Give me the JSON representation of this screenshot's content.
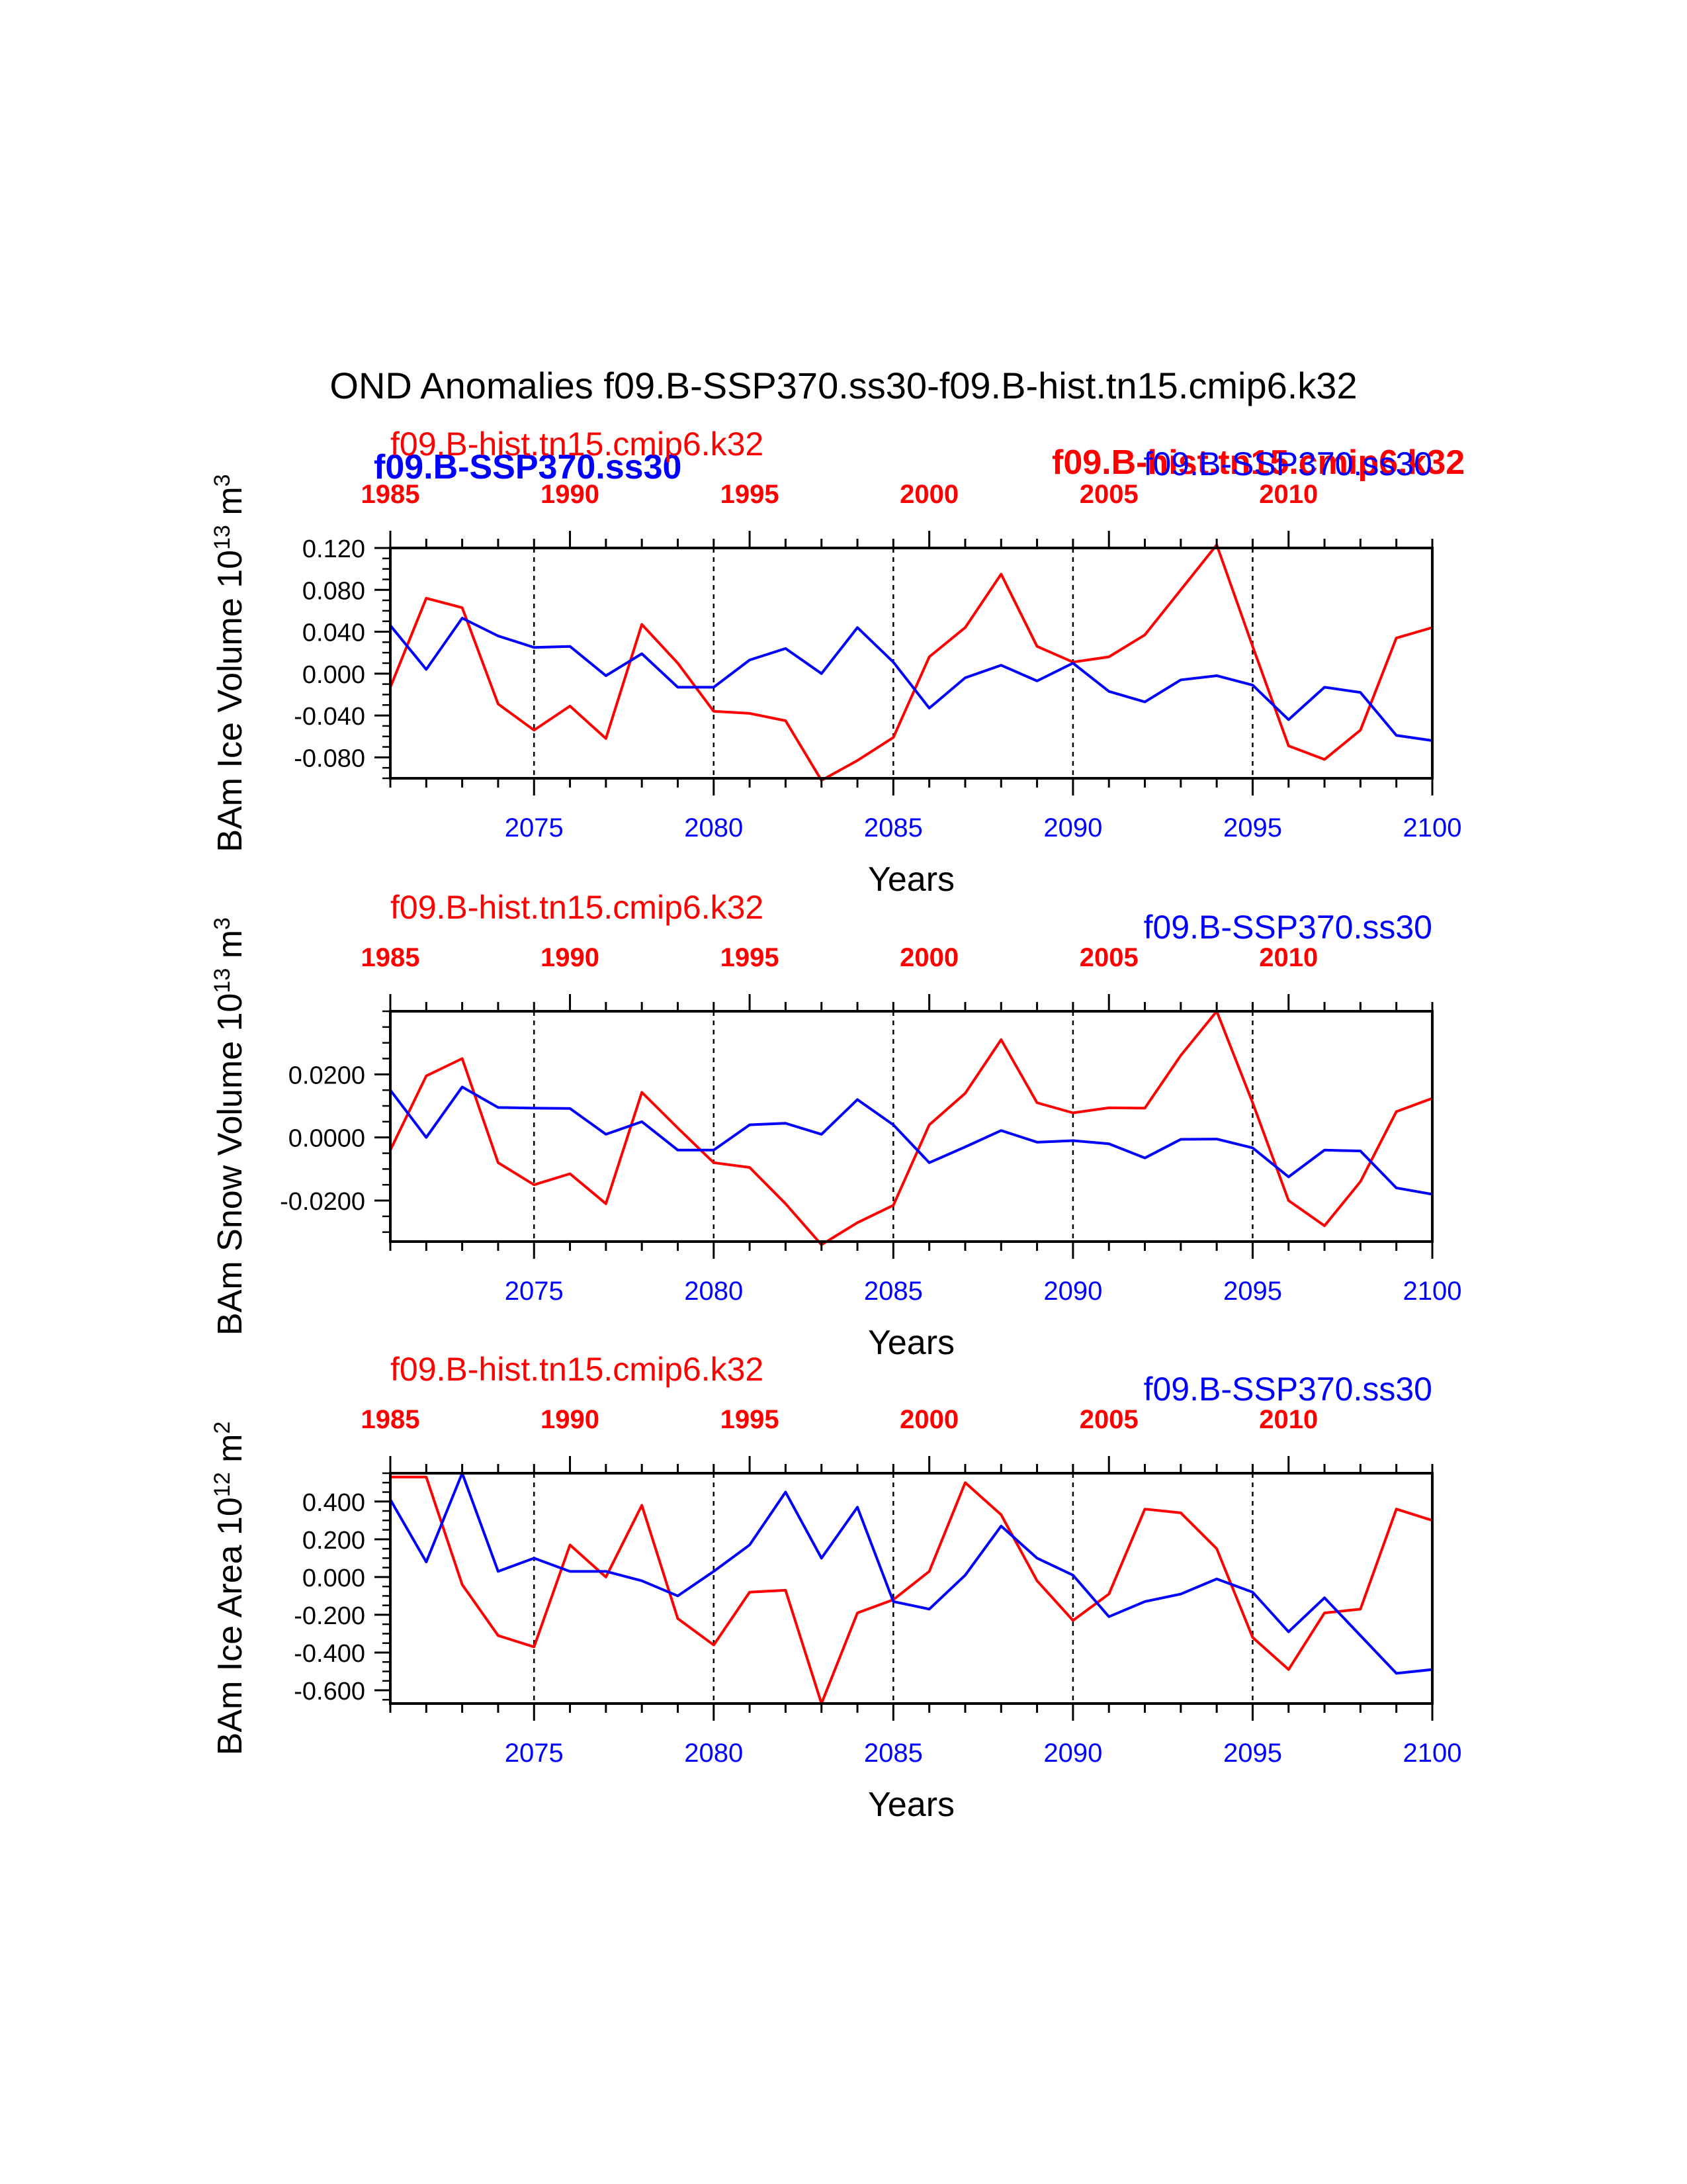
{
  "title": "OND Anomalies f09.B-SSP370.ss30-f09.B-hist.tn15.cmip6.k32",
  "colors": {
    "hist": "#ff0000",
    "ssp": "#0000ff",
    "axis": "#000000"
  },
  "bold_labels": {
    "ssp": "f09.B-SSP370.ss30",
    "hist": "f09.B-hist.tn15.cmip6.k32"
  },
  "chart_data": [
    {
      "type": "line",
      "ylabel": "BAm Ice Volume",
      "units": "10",
      "units_exp": "13",
      "units_tail": "m",
      "units_tail_exp": "3",
      "xlabel": "Years",
      "top_left_label": "f09.B-hist.tn15.cmip6.k32",
      "top_right_label": "f09.B-SSP370.ss30",
      "ylim": [
        -0.1,
        0.12
      ],
      "yticks": [
        0.12,
        0.08,
        0.04,
        0.0,
        -0.04,
        -0.08
      ],
      "ytick_labels": [
        "0.120",
        "0.080",
        "0.040",
        "0.000",
        "-0.040",
        "-0.080"
      ],
      "x_bottom_ticks": [
        2075,
        2080,
        2085,
        2090,
        2095,
        2100
      ],
      "x_top_ticks": [
        1985,
        1990,
        1995,
        2000,
        2005,
        2010
      ],
      "series": [
        {
          "name": "f09.B-SSP370.ss30",
          "x_start": 2071,
          "values": [
            0.046,
            0.004,
            0.053,
            0.036,
            0.025,
            0.026,
            -0.002,
            0.019,
            -0.013,
            -0.013,
            0.013,
            0.024,
            0.0,
            0.044,
            0.011,
            -0.033,
            -0.004,
            0.008,
            -0.007,
            0.01,
            -0.017,
            -0.027,
            -0.006,
            -0.002,
            -0.011,
            -0.044,
            -0.013,
            -0.018,
            -0.059,
            -0.064
          ]
        },
        {
          "name": "f09.B-hist.tn15.cmip6.k32",
          "x_start": 1985,
          "values": [
            -0.013,
            0.072,
            0.063,
            -0.029,
            -0.054,
            -0.031,
            -0.062,
            0.047,
            0.01,
            -0.036,
            -0.038,
            -0.045,
            -0.102,
            -0.083,
            -0.061,
            0.016,
            0.044,
            0.095,
            0.026,
            0.011,
            0.016,
            0.037,
            0.08,
            0.123,
            0.026,
            -0.069,
            -0.082,
            -0.054,
            0.034,
            0.044
          ]
        }
      ]
    },
    {
      "type": "line",
      "ylabel": "BAm Snow Volume",
      "units": "10",
      "units_exp": "13",
      "units_tail": "m",
      "units_tail_exp": "3",
      "xlabel": "Years",
      "top_left_label": "f09.B-hist.tn15.cmip6.k32",
      "top_right_label": "f09.B-SSP370.ss30",
      "ylim": [
        -0.033,
        0.04
      ],
      "yticks": [
        0.02,
        0.0,
        -0.02
      ],
      "ytick_labels": [
        "0.0200",
        "0.0000",
        "-0.0200"
      ],
      "x_bottom_ticks": [
        2075,
        2080,
        2085,
        2090,
        2095,
        2100
      ],
      "x_top_ticks": [
        1985,
        1990,
        1995,
        2000,
        2005,
        2010
      ],
      "series": [
        {
          "name": "f09.B-SSP370.ss30",
          "x_start": 2071,
          "values": [
            0.015,
            0.0,
            0.016,
            0.0095,
            0.0093,
            0.0092,
            0.001,
            0.005,
            -0.004,
            -0.004,
            0.004,
            0.0045,
            0.001,
            0.012,
            0.004,
            -0.008,
            -0.003,
            0.0022,
            -0.0015,
            -0.001,
            -0.002,
            -0.0065,
            -0.0006,
            -0.0005,
            -0.0033,
            -0.0125,
            -0.004,
            -0.0043,
            -0.016,
            -0.018
          ]
        },
        {
          "name": "f09.B-hist.tn15.cmip6.k32",
          "x_start": 1985,
          "values": [
            -0.004,
            0.0195,
            0.025,
            -0.008,
            -0.015,
            -0.0115,
            -0.021,
            0.0143,
            0.003,
            -0.008,
            -0.0095,
            -0.021,
            -0.034,
            -0.027,
            -0.0215,
            0.004,
            0.014,
            0.031,
            0.011,
            0.0078,
            0.0094,
            0.0093,
            0.026,
            0.04,
            0.011,
            -0.02,
            -0.028,
            -0.014,
            0.0082,
            0.0124
          ]
        }
      ]
    },
    {
      "type": "line",
      "ylabel": "BAm Ice Area",
      "units": "10",
      "units_exp": "12",
      "units_tail": "m",
      "units_tail_exp": "2",
      "xlabel": "Years",
      "top_left_label": "f09.B-hist.tn15.cmip6.k32",
      "top_right_label": "f09.B-SSP370.ss30",
      "ylim": [
        -0.67,
        0.55
      ],
      "yticks": [
        0.4,
        0.2,
        0.0,
        -0.2,
        -0.4,
        -0.6
      ],
      "ytick_labels": [
        "0.400",
        "0.200",
        "0.000",
        "-0.200",
        "-0.400",
        "-0.600"
      ],
      "x_bottom_ticks": [
        2075,
        2080,
        2085,
        2090,
        2095,
        2100
      ],
      "x_top_ticks": [
        1985,
        1990,
        1995,
        2000,
        2005,
        2010
      ],
      "series": [
        {
          "name": "f09.B-SSP370.ss30",
          "x_start": 2071,
          "values": [
            0.41,
            0.08,
            0.55,
            0.03,
            0.1,
            0.03,
            0.03,
            -0.02,
            -0.1,
            0.03,
            0.17,
            0.45,
            0.1,
            0.37,
            -0.13,
            -0.17,
            0.01,
            0.27,
            0.1,
            0.01,
            -0.21,
            -0.13,
            -0.09,
            -0.01,
            -0.08,
            -0.29,
            -0.11,
            -0.31,
            -0.51,
            -0.49
          ]
        },
        {
          "name": "f09.B-hist.tn15.cmip6.k32",
          "x_start": 1985,
          "values": [
            0.53,
            0.53,
            -0.04,
            -0.31,
            -0.37,
            0.17,
            0.0,
            0.38,
            -0.22,
            -0.36,
            -0.08,
            -0.07,
            -0.67,
            -0.19,
            -0.12,
            0.03,
            0.5,
            0.33,
            -0.02,
            -0.23,
            -0.09,
            0.36,
            0.34,
            0.15,
            -0.32,
            -0.49,
            -0.19,
            -0.17,
            0.36,
            0.3
          ]
        }
      ]
    }
  ]
}
